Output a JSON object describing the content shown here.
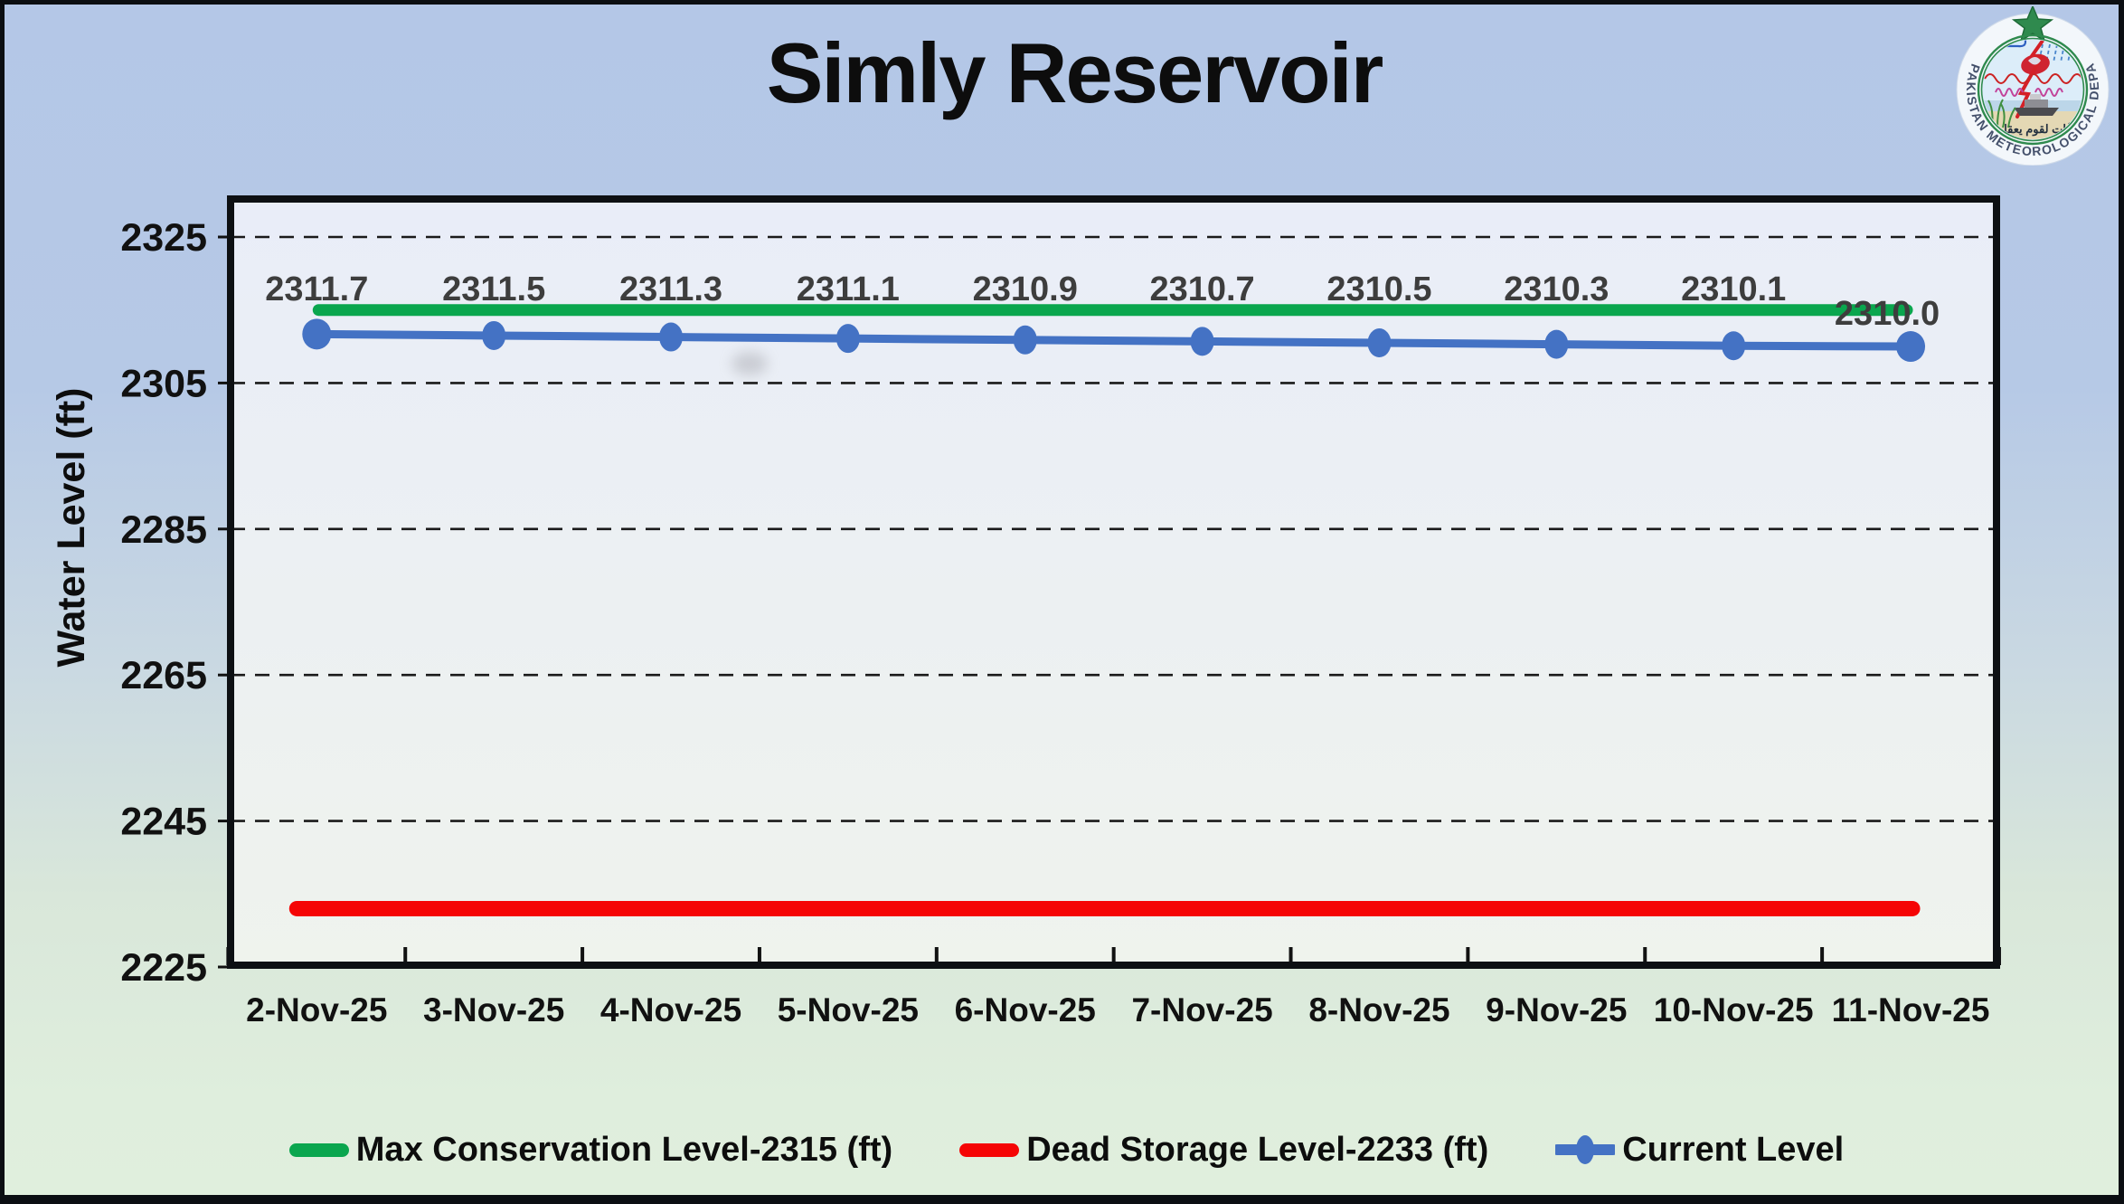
{
  "title": "Simly Reservoir",
  "logo": {
    "ring_text": "PAKISTAN METEOROLOGICAL DEPARTMENT",
    "arabic_text": "لآيات لقوم يعقلون"
  },
  "chart_data": {
    "type": "line",
    "title": "Simly Reservoir",
    "xlabel": "",
    "ylabel": "Water Level (ft)",
    "ylim": [
      2225,
      2330
    ],
    "yticks": [
      2225,
      2245,
      2265,
      2285,
      2305,
      2325
    ],
    "grid": "horizontal-dashed",
    "legend_position": "bottom",
    "categories": [
      "2-Nov-25",
      "3-Nov-25",
      "4-Nov-25",
      "5-Nov-25",
      "6-Nov-25",
      "7-Nov-25",
      "8-Nov-25",
      "9-Nov-25",
      "10-Nov-25",
      "11-Nov-25"
    ],
    "series": [
      {
        "name": "Max Conservation Level-2315 (ft)",
        "color": "#0aa64e",
        "values": [
          2315,
          2315,
          2315,
          2315,
          2315,
          2315,
          2315,
          2315,
          2315,
          2315
        ]
      },
      {
        "name": "Dead Storage Level-2233 (ft)",
        "color": "#f50505",
        "values": [
          2233,
          2233,
          2233,
          2233,
          2233,
          2233,
          2233,
          2233,
          2233,
          2233
        ]
      },
      {
        "name": "Current Level",
        "color": "#4472c4",
        "values": [
          2311.7,
          2311.5,
          2311.3,
          2311.1,
          2310.9,
          2310.7,
          2310.5,
          2310.3,
          2310.1,
          2310.0
        ]
      }
    ],
    "point_labels": [
      "2311.7",
      "2311.5",
      "2311.3",
      "2311.1",
      "2310.9",
      "2310.7",
      "2310.5",
      "2310.3",
      "2310.1",
      "2310.0"
    ]
  },
  "colors": {
    "background_top": "#b4c7e7",
    "background_bottom": "#e0efdd",
    "plot_top": "#e9edf8",
    "plot_bottom": "#eff3ed",
    "axis_text": "#111111",
    "data_label_text": "#3d3d3d",
    "frame": "#0b0e12"
  }
}
